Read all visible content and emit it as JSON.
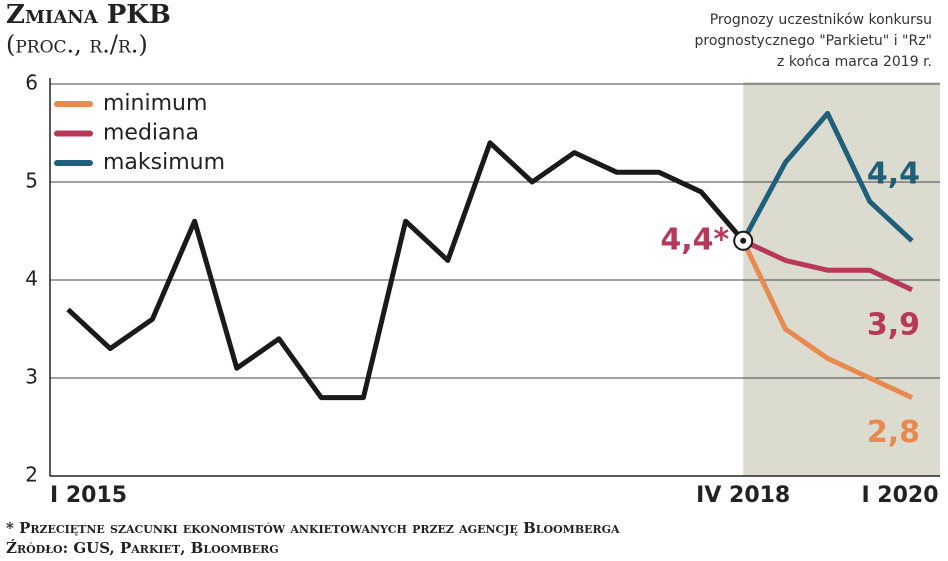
{
  "chart_data": {
    "type": "line",
    "title": "Zmiana PKB",
    "subtitle": "(proc., r./r.)",
    "note": [
      "Prognozy uczestników konkursu",
      "prognostycznego \"Parkietu\" i \"Rz\"",
      "z końca marca 2019 r."
    ],
    "footnotes": [
      "* Przeciętne szacunki ekonomistów ankietowanych przez agencję Bloomberga",
      "Źródło: GUS, Parkiet, Bloomberg"
    ],
    "categories": [
      "I 2015",
      null,
      null,
      null,
      null,
      null,
      null,
      null,
      null,
      null,
      null,
      null,
      null,
      null,
      null,
      null,
      "IV 2018",
      null,
      null,
      null,
      "I 2020"
    ],
    "ylim": [
      2,
      6
    ],
    "yticks": [
      2,
      3,
      4,
      5,
      6
    ],
    "grid": true,
    "legend": "upper left",
    "series": [
      {
        "color": "#1a1a1a",
        "values": [
          3.7,
          3.3,
          3.6,
          4.6,
          3.1,
          3.4,
          2.8,
          2.8,
          4.6,
          4.2,
          5.4,
          5.0,
          5.3,
          5.1,
          5.1,
          4.9,
          4.4,
          null,
          null,
          null,
          null
        ],
        "value_labels": [
          null,
          null,
          null,
          null,
          null,
          null,
          null,
          null,
          null,
          null,
          null,
          null,
          null,
          null,
          null,
          null,
          "4,4*",
          null,
          null,
          null,
          null
        ]
      },
      {
        "name": "minimum",
        "color": "#e8894f",
        "values": [
          null,
          null,
          null,
          null,
          null,
          null,
          null,
          null,
          null,
          null,
          null,
          null,
          null,
          null,
          null,
          null,
          4.4,
          3.5,
          3.2,
          3.0,
          2.8
        ],
        "value_labels": [
          null,
          null,
          null,
          null,
          null,
          null,
          null,
          null,
          null,
          null,
          null,
          null,
          null,
          null,
          null,
          null,
          null,
          null,
          null,
          null,
          "2,8"
        ]
      },
      {
        "name": "mediana",
        "color": "#b8385a",
        "values": [
          null,
          null,
          null,
          null,
          null,
          null,
          null,
          null,
          null,
          null,
          null,
          null,
          null,
          null,
          null,
          null,
          4.4,
          4.2,
          4.1,
          4.1,
          3.9
        ],
        "value_labels": [
          null,
          null,
          null,
          null,
          null,
          null,
          null,
          null,
          null,
          null,
          null,
          null,
          null,
          null,
          null,
          null,
          null,
          null,
          null,
          null,
          "3,9"
        ]
      },
      {
        "name": "maksimum",
        "color": "#1f5f7a",
        "values": [
          null,
          null,
          null,
          null,
          null,
          null,
          null,
          null,
          null,
          null,
          null,
          null,
          null,
          null,
          null,
          null,
          4.4,
          5.2,
          5.7,
          4.8,
          4.4
        ],
        "value_labels": [
          null,
          null,
          null,
          null,
          null,
          null,
          null,
          null,
          null,
          null,
          null,
          null,
          null,
          null,
          null,
          null,
          null,
          null,
          null,
          null,
          "4,4"
        ]
      }
    ]
  }
}
